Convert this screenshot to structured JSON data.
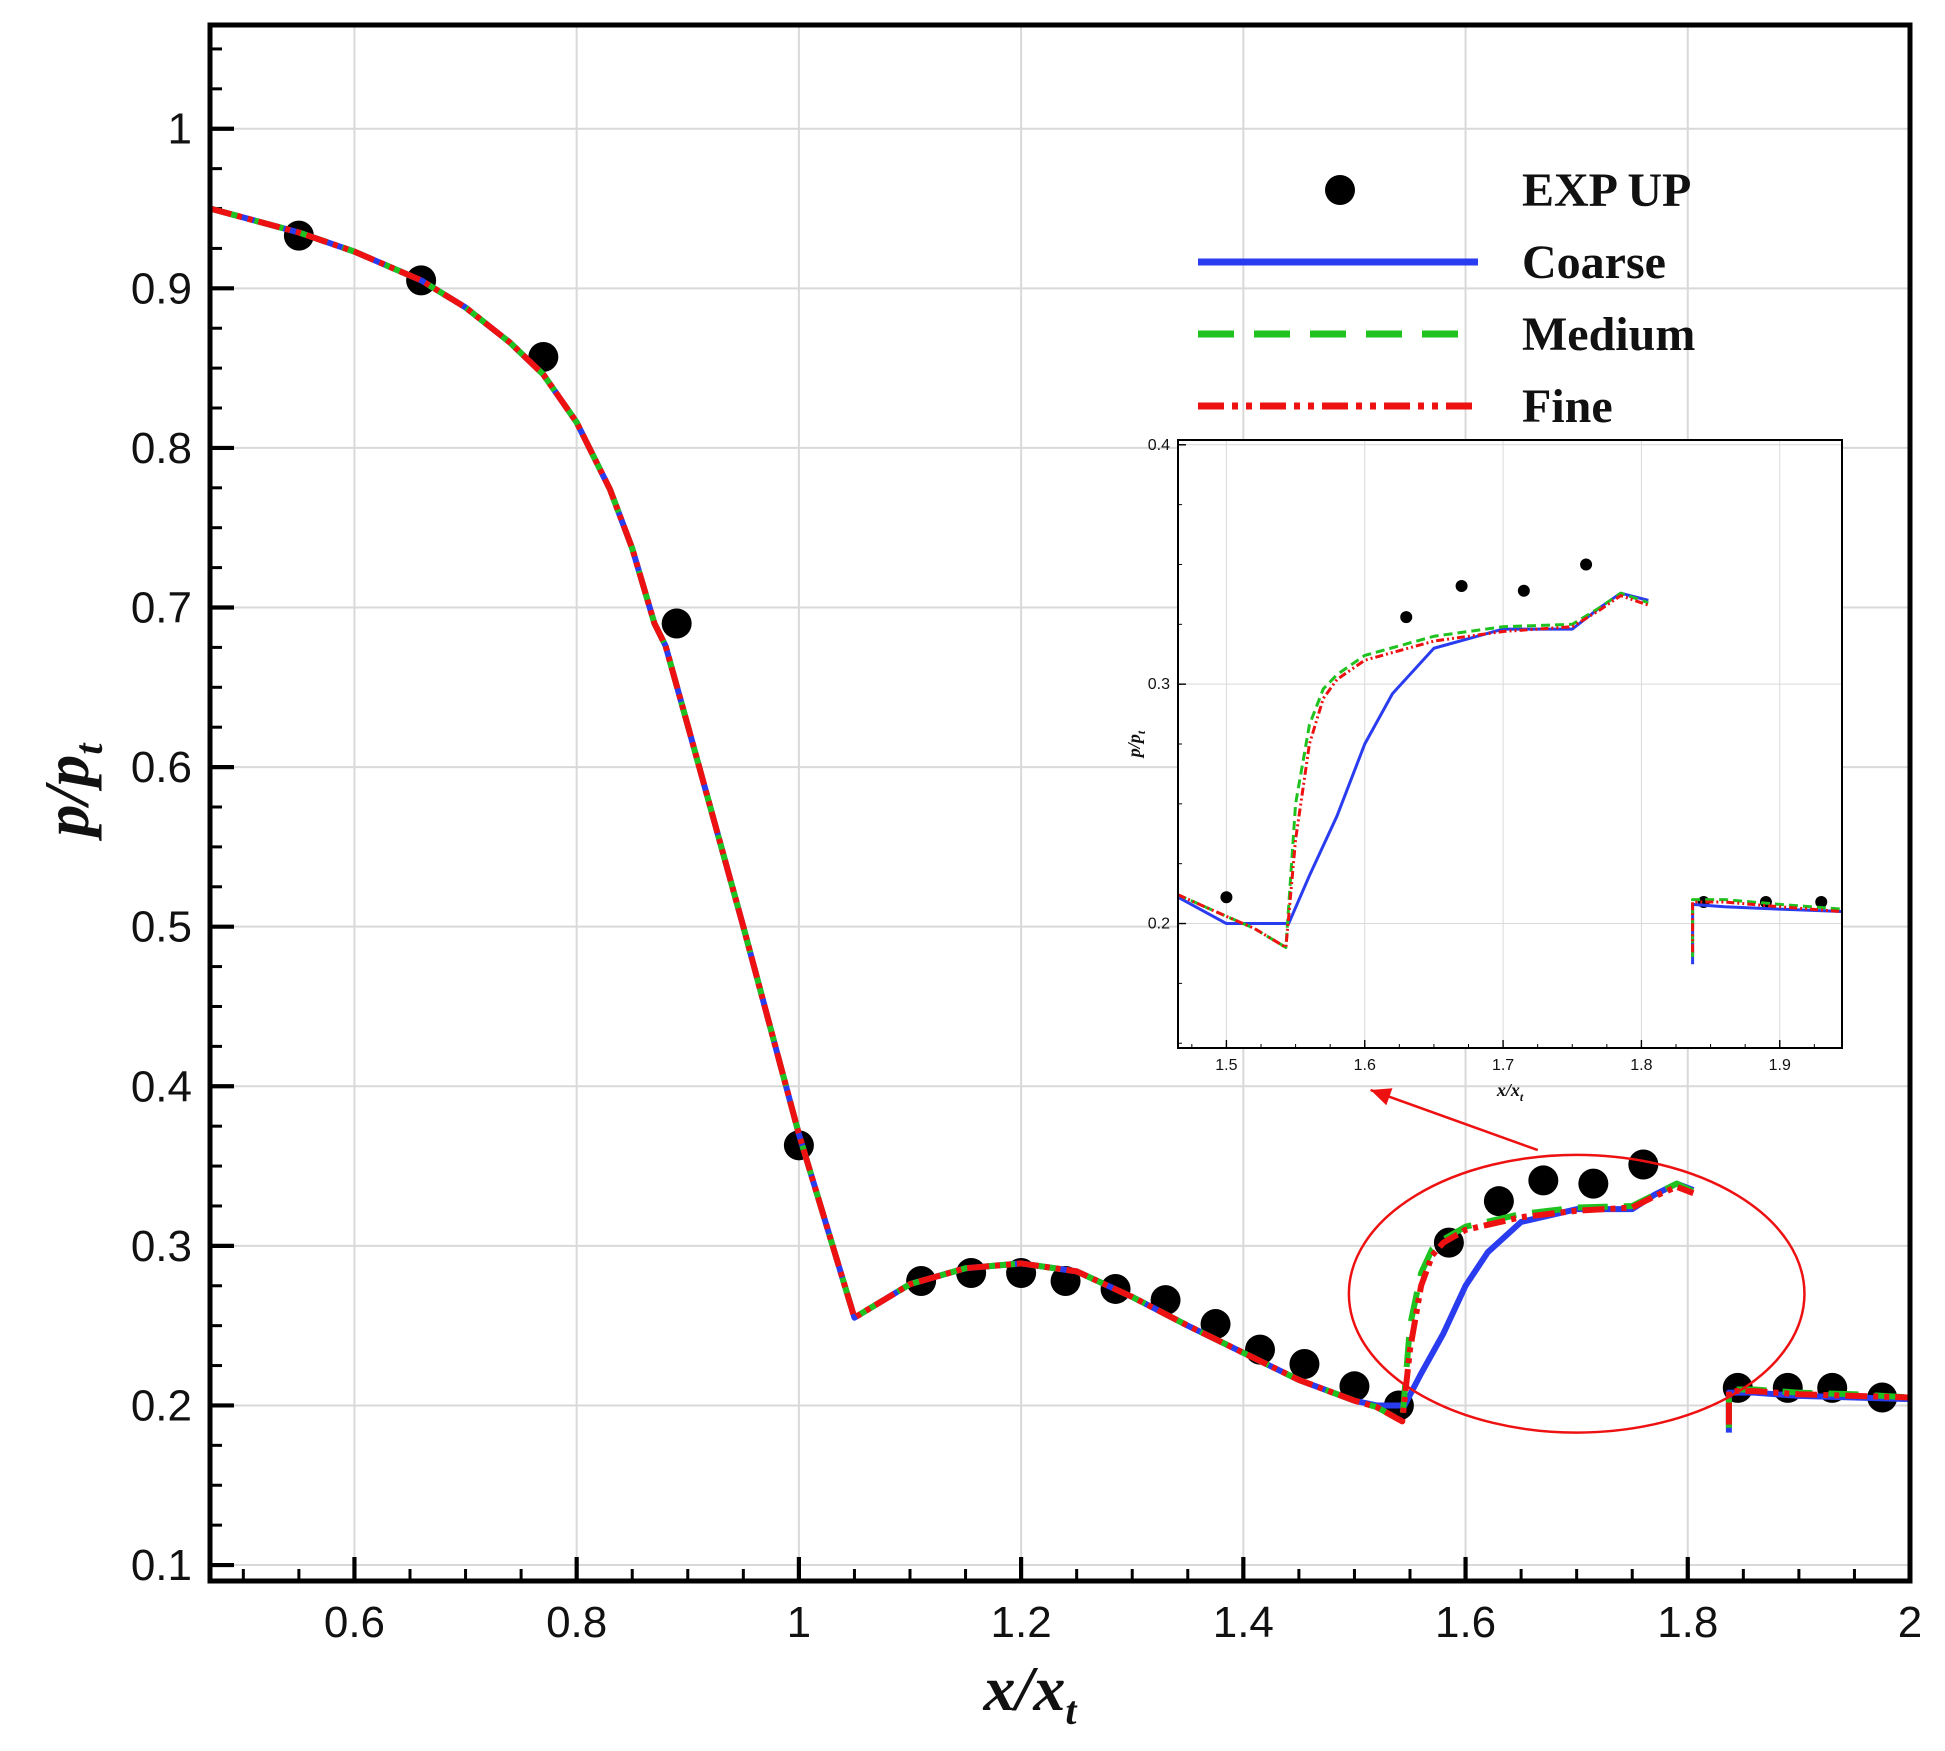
{
  "chart_data": [
    {
      "id": "main",
      "type": "line",
      "xlabel": "x/x",
      "xlabel_sub": "t",
      "ylabel": "p/p",
      "ylabel_sub": "t",
      "xlim": [
        0.47,
        2.0
      ],
      "ylim": [
        0.09,
        1.065
      ],
      "xticks": [
        0.6,
        0.8,
        1.0,
        1.2,
        1.4,
        1.6,
        1.8,
        2.0
      ],
      "xtick_labels": [
        "0.6",
        "0.8",
        "1",
        "1.2",
        "1.4",
        "1.6",
        "1.8",
        "2"
      ],
      "yticks": [
        0.1,
        0.2,
        0.3,
        0.4,
        0.5,
        0.6,
        0.7,
        0.8,
        0.9,
        1.0
      ],
      "ytick_labels": [
        "0.1",
        "0.2",
        "0.3",
        "0.4",
        "0.5",
        "0.6",
        "0.7",
        "0.8",
        "0.9",
        "1"
      ],
      "grid": true,
      "legend_position": "top-right",
      "series": [
        {
          "name": "EXP UP",
          "kind": "marker",
          "color": "#000000",
          "x": [
            0.55,
            0.66,
            0.77,
            0.89,
            1.0,
            1.11,
            1.155,
            1.2,
            1.24,
            1.285,
            1.33,
            1.375,
            1.415,
            1.455,
            1.5,
            1.54,
            1.585,
            1.63,
            1.67,
            1.715,
            1.76,
            1.845,
            1.89,
            1.93,
            1.975
          ],
          "y": [
            0.933,
            0.905,
            0.857,
            0.69,
            0.363,
            0.278,
            0.283,
            0.283,
            0.278,
            0.273,
            0.266,
            0.251,
            0.235,
            0.226,
            0.212,
            0.2,
            0.302,
            0.328,
            0.341,
            0.339,
            0.351,
            0.211,
            0.211,
            0.211,
            0.205
          ]
        },
        {
          "name": "Coarse",
          "kind": "line",
          "dash": "solid",
          "color": "#2a3cf0",
          "segments": [
            {
              "x": [
                0.47,
                0.55,
                0.6,
                0.66,
                0.7,
                0.74,
                0.77,
                0.8,
                0.83,
                0.85,
                0.87,
                0.88,
                0.9,
                0.95,
                1.0,
                1.05,
                1.1,
                1.15,
                1.2,
                1.25,
                1.3,
                1.35,
                1.4,
                1.45,
                1.5,
                1.52,
                1.545,
                1.56,
                1.58,
                1.6,
                1.62,
                1.65,
                1.7,
                1.75,
                1.77,
                1.79,
                1.805
              ],
              "y": [
                0.95,
                0.935,
                0.923,
                0.905,
                0.888,
                0.866,
                0.846,
                0.816,
                0.774,
                0.737,
                0.69,
                0.676,
                0.626,
                0.5,
                0.37,
                0.255,
                0.276,
                0.286,
                0.289,
                0.284,
                0.268,
                0.25,
                0.233,
                0.216,
                0.203,
                0.2,
                0.2,
                0.22,
                0.245,
                0.275,
                0.296,
                0.315,
                0.323,
                0.323,
                0.332,
                0.339,
                0.335
              ]
            },
            {
              "x": [
                1.837,
                1.837,
                1.86,
                1.9,
                1.95,
                2.0
              ],
              "y": [
                0.183,
                0.208,
                0.208,
                0.206,
                0.205,
                0.204
              ]
            }
          ]
        },
        {
          "name": "Medium",
          "kind": "line",
          "dash": "dashed",
          "color": "#1fc21f",
          "segments": [
            {
              "x": [
                0.47,
                0.55,
                0.6,
                0.66,
                0.7,
                0.74,
                0.77,
                0.8,
                0.83,
                0.85,
                0.87,
                0.88,
                0.9,
                0.95,
                1.0,
                1.05,
                1.1,
                1.15,
                1.2,
                1.25,
                1.3,
                1.35,
                1.4,
                1.45,
                1.5,
                1.52,
                1.543,
                1.55,
                1.56,
                1.57,
                1.58,
                1.6,
                1.65,
                1.7,
                1.75,
                1.77,
                1.79,
                1.805
              ],
              "y": [
                0.95,
                0.935,
                0.923,
                0.905,
                0.888,
                0.866,
                0.846,
                0.816,
                0.774,
                0.737,
                0.69,
                0.676,
                0.626,
                0.5,
                0.37,
                0.255,
                0.276,
                0.286,
                0.289,
                0.284,
                0.268,
                0.25,
                0.233,
                0.216,
                0.203,
                0.199,
                0.19,
                0.25,
                0.283,
                0.298,
                0.304,
                0.312,
                0.32,
                0.324,
                0.325,
                0.332,
                0.339,
                0.334
              ]
            },
            {
              "x": [
                1.837,
                1.837,
                1.86,
                1.9,
                1.95,
                2.0
              ],
              "y": [
                0.186,
                0.21,
                0.21,
                0.208,
                0.207,
                0.205
              ]
            }
          ]
        },
        {
          "name": "Fine",
          "kind": "line",
          "dash": "dash-dot-dot",
          "color": "#ee1111",
          "segments": [
            {
              "x": [
                0.47,
                0.55,
                0.6,
                0.66,
                0.7,
                0.74,
                0.77,
                0.8,
                0.83,
                0.85,
                0.87,
                0.88,
                0.9,
                0.95,
                1.0,
                1.05,
                1.1,
                1.15,
                1.2,
                1.25,
                1.3,
                1.35,
                1.4,
                1.45,
                1.5,
                1.52,
                1.543,
                1.55,
                1.56,
                1.57,
                1.58,
                1.6,
                1.65,
                1.7,
                1.75,
                1.77,
                1.79,
                1.805
              ],
              "y": [
                0.95,
                0.935,
                0.923,
                0.905,
                0.888,
                0.866,
                0.846,
                0.816,
                0.774,
                0.737,
                0.69,
                0.676,
                0.626,
                0.5,
                0.37,
                0.255,
                0.276,
                0.286,
                0.289,
                0.284,
                0.268,
                0.25,
                0.233,
                0.216,
                0.203,
                0.199,
                0.19,
                0.235,
                0.275,
                0.294,
                0.302,
                0.31,
                0.318,
                0.322,
                0.324,
                0.331,
                0.337,
                0.333
              ]
            },
            {
              "x": [
                1.837,
                1.837,
                1.86,
                1.9,
                1.95,
                2.0
              ],
              "y": [
                0.188,
                0.209,
                0.209,
                0.207,
                0.206,
                0.205
              ]
            }
          ]
        }
      ],
      "annotations": [
        {
          "kind": "ellipse",
          "color": "#ee1111",
          "center": [
            1.7,
            0.27
          ],
          "radius_x_data": 0.205,
          "radius_y_data": 0.087
        },
        {
          "kind": "arrow",
          "color": "#ee1111",
          "from": [
            1.665,
            0.36
          ],
          "to_target": "inset"
        }
      ]
    },
    {
      "id": "inset",
      "type": "line",
      "xlabel": "x/x",
      "xlabel_sub": "t",
      "ylabel": "p/p",
      "ylabel_sub": "t",
      "xlim": [
        1.465,
        1.945
      ],
      "ylim": [
        0.148,
        0.402
      ],
      "xticks": [
        1.5,
        1.6,
        1.7,
        1.8,
        1.9
      ],
      "xtick_labels": [
        "1.5",
        "1.6",
        "1.7",
        "1.8",
        "1.9"
      ],
      "yticks": [
        0.2,
        0.3,
        0.4
      ],
      "ytick_labels": [
        "0.2",
        "0.3",
        "0.4"
      ],
      "grid": true,
      "series": [
        {
          "name": "EXP UP",
          "kind": "marker",
          "color": "#000000",
          "x": [
            1.5,
            1.63,
            1.67,
            1.715,
            1.76,
            1.845,
            1.89,
            1.93
          ],
          "y": [
            0.211,
            0.328,
            0.341,
            0.339,
            0.35,
            0.209,
            0.209,
            0.209
          ]
        },
        {
          "name": "Coarse",
          "kind": "line",
          "dash": "solid",
          "color": "#2a3cf0",
          "segments": [
            {
              "x": [
                1.465,
                1.5,
                1.52,
                1.545,
                1.56,
                1.58,
                1.6,
                1.62,
                1.65,
                1.7,
                1.74,
                1.75,
                1.77,
                1.785,
                1.805
              ],
              "y": [
                0.211,
                0.2,
                0.2,
                0.2,
                0.22,
                0.245,
                0.275,
                0.296,
                0.315,
                0.323,
                0.323,
                0.323,
                0.332,
                0.338,
                0.335
              ]
            },
            {
              "x": [
                1.837,
                1.837,
                1.86,
                1.9,
                1.945
              ],
              "y": [
                0.183,
                0.208,
                0.207,
                0.206,
                0.205
              ]
            }
          ]
        },
        {
          "name": "Medium",
          "kind": "line",
          "dash": "dashed",
          "color": "#1fc21f",
          "segments": [
            {
              "x": [
                1.465,
                1.5,
                1.52,
                1.543,
                1.55,
                1.56,
                1.57,
                1.58,
                1.6,
                1.65,
                1.7,
                1.75,
                1.77,
                1.785,
                1.805
              ],
              "y": [
                0.212,
                0.203,
                0.198,
                0.19,
                0.25,
                0.283,
                0.298,
                0.304,
                0.312,
                0.32,
                0.324,
                0.325,
                0.332,
                0.338,
                0.334
              ]
            },
            {
              "x": [
                1.837,
                1.837,
                1.86,
                1.9,
                1.945
              ],
              "y": [
                0.186,
                0.21,
                0.21,
                0.208,
                0.206
              ]
            }
          ]
        },
        {
          "name": "Fine",
          "kind": "line",
          "dash": "dash-dot-dot",
          "color": "#ee1111",
          "segments": [
            {
              "x": [
                1.465,
                1.5,
                1.52,
                1.543,
                1.55,
                1.56,
                1.57,
                1.58,
                1.6,
                1.65,
                1.7,
                1.75,
                1.77,
                1.785,
                1.805
              ],
              "y": [
                0.212,
                0.203,
                0.198,
                0.19,
                0.235,
                0.275,
                0.294,
                0.302,
                0.31,
                0.318,
                0.322,
                0.324,
                0.331,
                0.337,
                0.333
              ]
            },
            {
              "x": [
                1.837,
                1.837,
                1.86,
                1.9,
                1.945
              ],
              "y": [
                0.188,
                0.209,
                0.209,
                0.207,
                0.205
              ]
            }
          ]
        }
      ]
    }
  ]
}
